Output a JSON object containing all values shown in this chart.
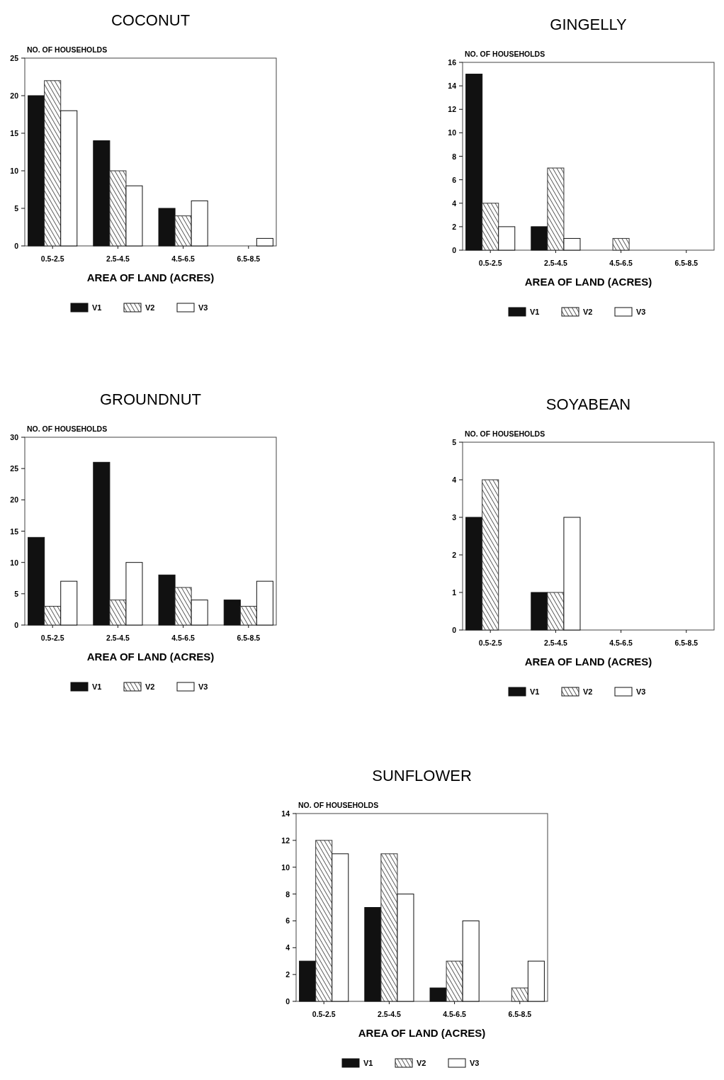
{
  "chart_data": [
    {
      "type": "bar",
      "title": "COCONUT",
      "ylabel": "NO. OF HOUSEHOLDS",
      "xlabel": "AREA OF LAND (ACRES)",
      "categories": [
        "0.5-2.5",
        "2.5-4.5",
        "4.5-6.5",
        "6.5-8.5"
      ],
      "ylim": [
        0,
        25
      ],
      "yticks": [
        0,
        5,
        10,
        15,
        20,
        25
      ],
      "legend": "bottom",
      "grid": false,
      "series": [
        {
          "name": "V1",
          "color": "#111111",
          "values": [
            20,
            14,
            5,
            0
          ]
        },
        {
          "name": "V2",
          "color": "#333333",
          "values": [
            22,
            10,
            4,
            0
          ]
        },
        {
          "name": "V3",
          "color": "#ffffff",
          "values": [
            18,
            8,
            6,
            1
          ]
        }
      ]
    },
    {
      "type": "bar",
      "title": "GINGELLY",
      "ylabel": "NO. OF HOUSEHOLDS",
      "xlabel": "AREA OF LAND (ACRES)",
      "categories": [
        "0.5-2.5",
        "2.5-4.5",
        "4.5-6.5",
        "6.5-8.5"
      ],
      "ylim": [
        0,
        16
      ],
      "yticks": [
        0,
        2,
        4,
        6,
        8,
        10,
        12,
        14,
        16
      ],
      "legend": "bottom",
      "grid": false,
      "series": [
        {
          "name": "V1",
          "color": "#111111",
          "values": [
            15,
            2,
            0,
            0
          ]
        },
        {
          "name": "V2",
          "color": "#333333",
          "values": [
            4,
            7,
            1,
            0
          ]
        },
        {
          "name": "V3",
          "color": "#ffffff",
          "values": [
            2,
            1,
            0,
            0
          ]
        }
      ]
    },
    {
      "type": "bar",
      "title": "GROUNDNUT",
      "ylabel": "NO. OF HOUSEHOLDS",
      "xlabel": "AREA OF LAND (ACRES)",
      "categories": [
        "0.5-2.5",
        "2.5-4.5",
        "4.5-6.5",
        "6.5-8.5"
      ],
      "ylim": [
        0,
        30
      ],
      "yticks": [
        0,
        5,
        10,
        15,
        20,
        25,
        30
      ],
      "legend": "bottom",
      "grid": false,
      "series": [
        {
          "name": "V1",
          "color": "#111111",
          "values": [
            14,
            26,
            8,
            4
          ]
        },
        {
          "name": "V2",
          "color": "#333333",
          "values": [
            3,
            4,
            6,
            3
          ]
        },
        {
          "name": "V3",
          "color": "#ffffff",
          "values": [
            7,
            10,
            4,
            7
          ]
        }
      ]
    },
    {
      "type": "bar",
      "title": "SOYABEAN",
      "ylabel": "NO. OF HOUSEHOLDS",
      "xlabel": "AREA OF LAND (ACRES)",
      "categories": [
        "0.5-2.5",
        "2.5-4.5",
        "4.5-6.5",
        "6.5-8.5"
      ],
      "ylim": [
        0,
        5
      ],
      "yticks": [
        0,
        1,
        2,
        3,
        4,
        5
      ],
      "legend": "bottom",
      "grid": false,
      "series": [
        {
          "name": "V1",
          "color": "#111111",
          "values": [
            3,
            1,
            0,
            0
          ]
        },
        {
          "name": "V2",
          "color": "#333333",
          "values": [
            4,
            1,
            0,
            0
          ]
        },
        {
          "name": "V3",
          "color": "#ffffff",
          "values": [
            0,
            3,
            0,
            0
          ]
        }
      ]
    },
    {
      "type": "bar",
      "title": "SUNFLOWER",
      "ylabel": "NO. OF HOUSEHOLDS",
      "xlabel": "AREA OF LAND (ACRES)",
      "categories": [
        "0.5-2.5",
        "2.5-4.5",
        "4.5-6.5",
        "6.5-8.5"
      ],
      "ylim": [
        0,
        14
      ],
      "yticks": [
        0,
        2,
        4,
        6,
        8,
        10,
        12,
        14
      ],
      "legend": "bottom",
      "grid": false,
      "series": [
        {
          "name": "V1",
          "color": "#111111",
          "values": [
            3,
            7,
            1,
            0
          ]
        },
        {
          "name": "V2",
          "color": "#333333",
          "values": [
            12,
            11,
            3,
            1
          ]
        },
        {
          "name": "V3",
          "color": "#ffffff",
          "values": [
            11,
            8,
            6,
            3
          ]
        }
      ]
    }
  ]
}
